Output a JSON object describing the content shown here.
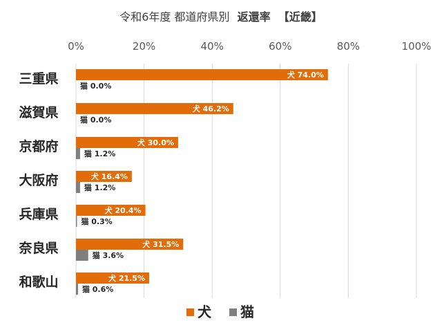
{
  "chart_data": {
    "type": "bar",
    "orientation": "horizontal",
    "title_prefix": "令和6年度 都道府県別",
    "title_main": "返還率",
    "title_suffix": "【近畿】",
    "categories": [
      "三重県",
      "滋賀県",
      "京都府",
      "大阪府",
      "兵庫県",
      "奈良県",
      "和歌山"
    ],
    "series": [
      {
        "name": "犬",
        "color": "#E36C0A",
        "values": [
          74.0,
          46.2,
          30.0,
          16.4,
          20.4,
          31.5,
          21.5
        ],
        "labels": [
          "犬 74.0%",
          "犬 46.2%",
          "犬 30.0%",
          "犬 16.4%",
          "犬 20.4%",
          "犬 31.5%",
          "犬 21.5%"
        ]
      },
      {
        "name": "猫",
        "color": "#7F7F7F",
        "values": [
          0.0,
          0.0,
          1.2,
          1.2,
          0.3,
          3.6,
          0.6
        ],
        "labels": [
          "猫 0.0%",
          "猫 0.0%",
          "猫 1.2%",
          "猫 1.2%",
          "猫 0.3%",
          "猫 3.6%",
          "猫 0.6%"
        ]
      }
    ],
    "xlim": [
      0,
      100
    ],
    "xticks": [
      "0%",
      "20%",
      "40%",
      "60%",
      "80%",
      "100%"
    ],
    "grid": true,
    "legend_position": "bottom"
  }
}
